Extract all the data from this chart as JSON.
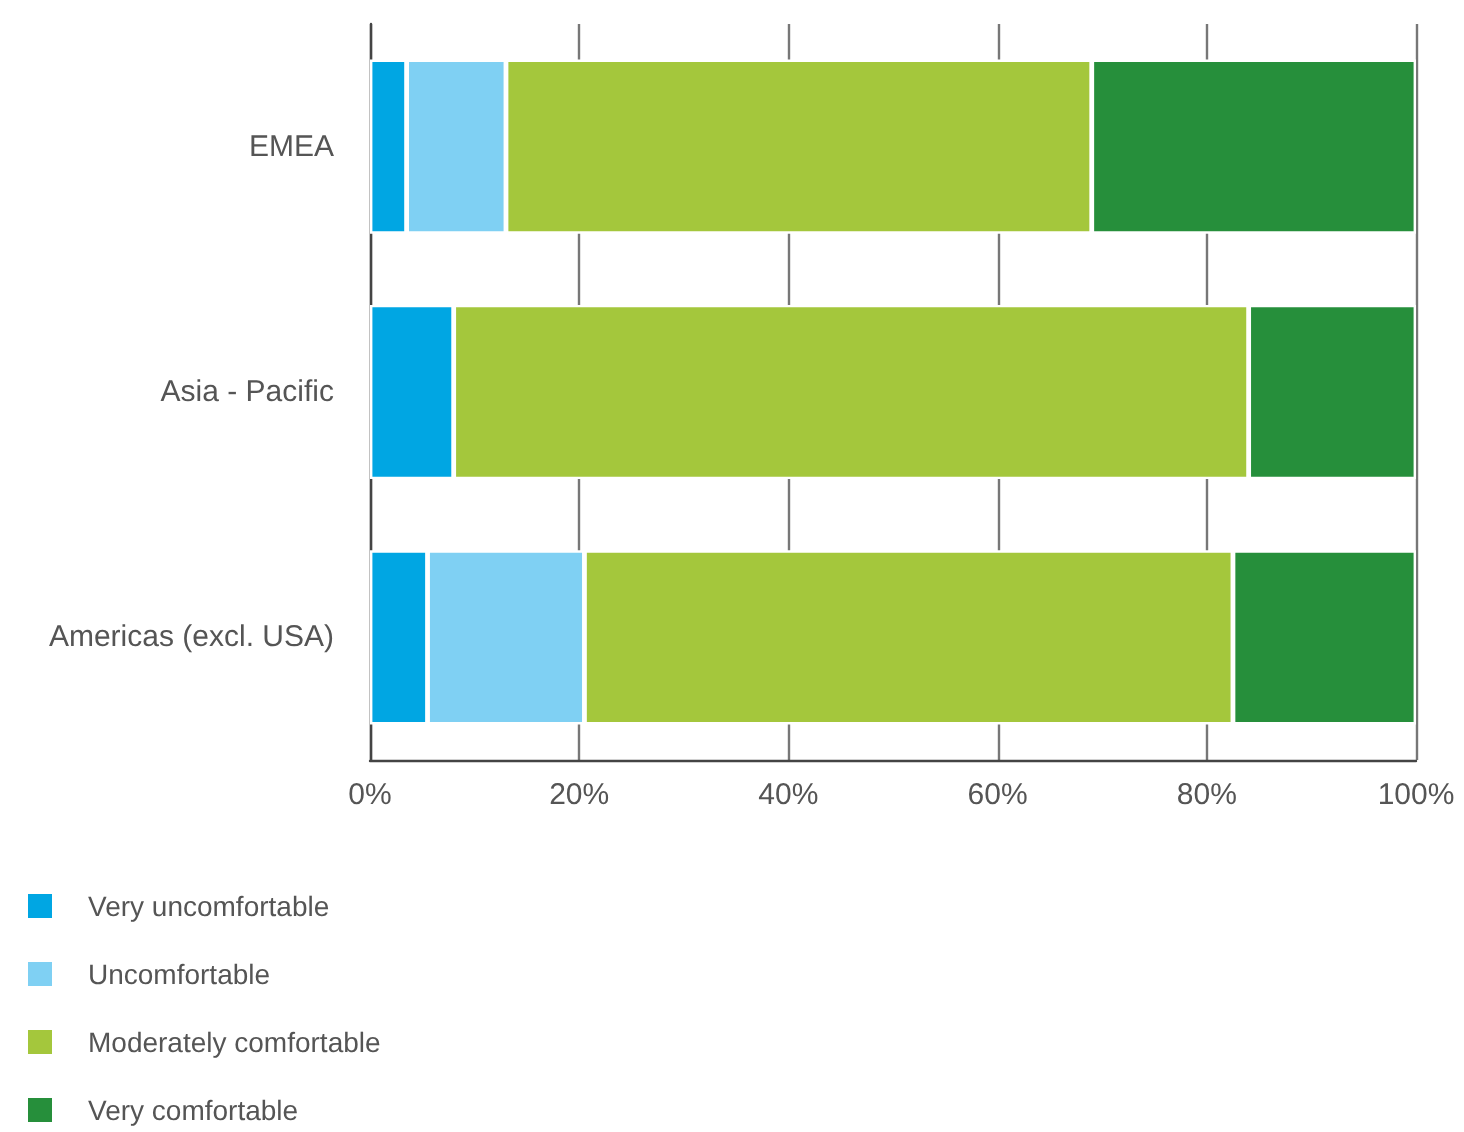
{
  "chart_data": {
    "type": "bar",
    "orientation": "horizontal",
    "stacked": true,
    "categories": [
      "EMEA",
      "Asia - Pacific",
      "Americas (excl. USA)"
    ],
    "series": [
      {
        "name": "Very uncomfortable",
        "color": "#00a6e3",
        "values": [
          3.5,
          8,
          5.5
        ]
      },
      {
        "name": "Uncomfortable",
        "color": "#7fd0f3",
        "values": [
          9.5,
          0,
          15
        ]
      },
      {
        "name": "Moderately comfortable",
        "color": "#a4c73c",
        "values": [
          56,
          76,
          62
        ]
      },
      {
        "name": "Very comfortable",
        "color": "#268f3b",
        "values": [
          31,
          16,
          17.5
        ]
      }
    ],
    "xlim": [
      0,
      100
    ],
    "xticks": [
      {
        "value": 0,
        "label": "0%"
      },
      {
        "value": 20,
        "label": "20%"
      },
      {
        "value": 40,
        "label": "40%"
      },
      {
        "value": 60,
        "label": "60%"
      },
      {
        "value": 80,
        "label": "80%"
      },
      {
        "value": 100,
        "label": "100%"
      }
    ],
    "grid": "x",
    "legend": "bottom left"
  }
}
